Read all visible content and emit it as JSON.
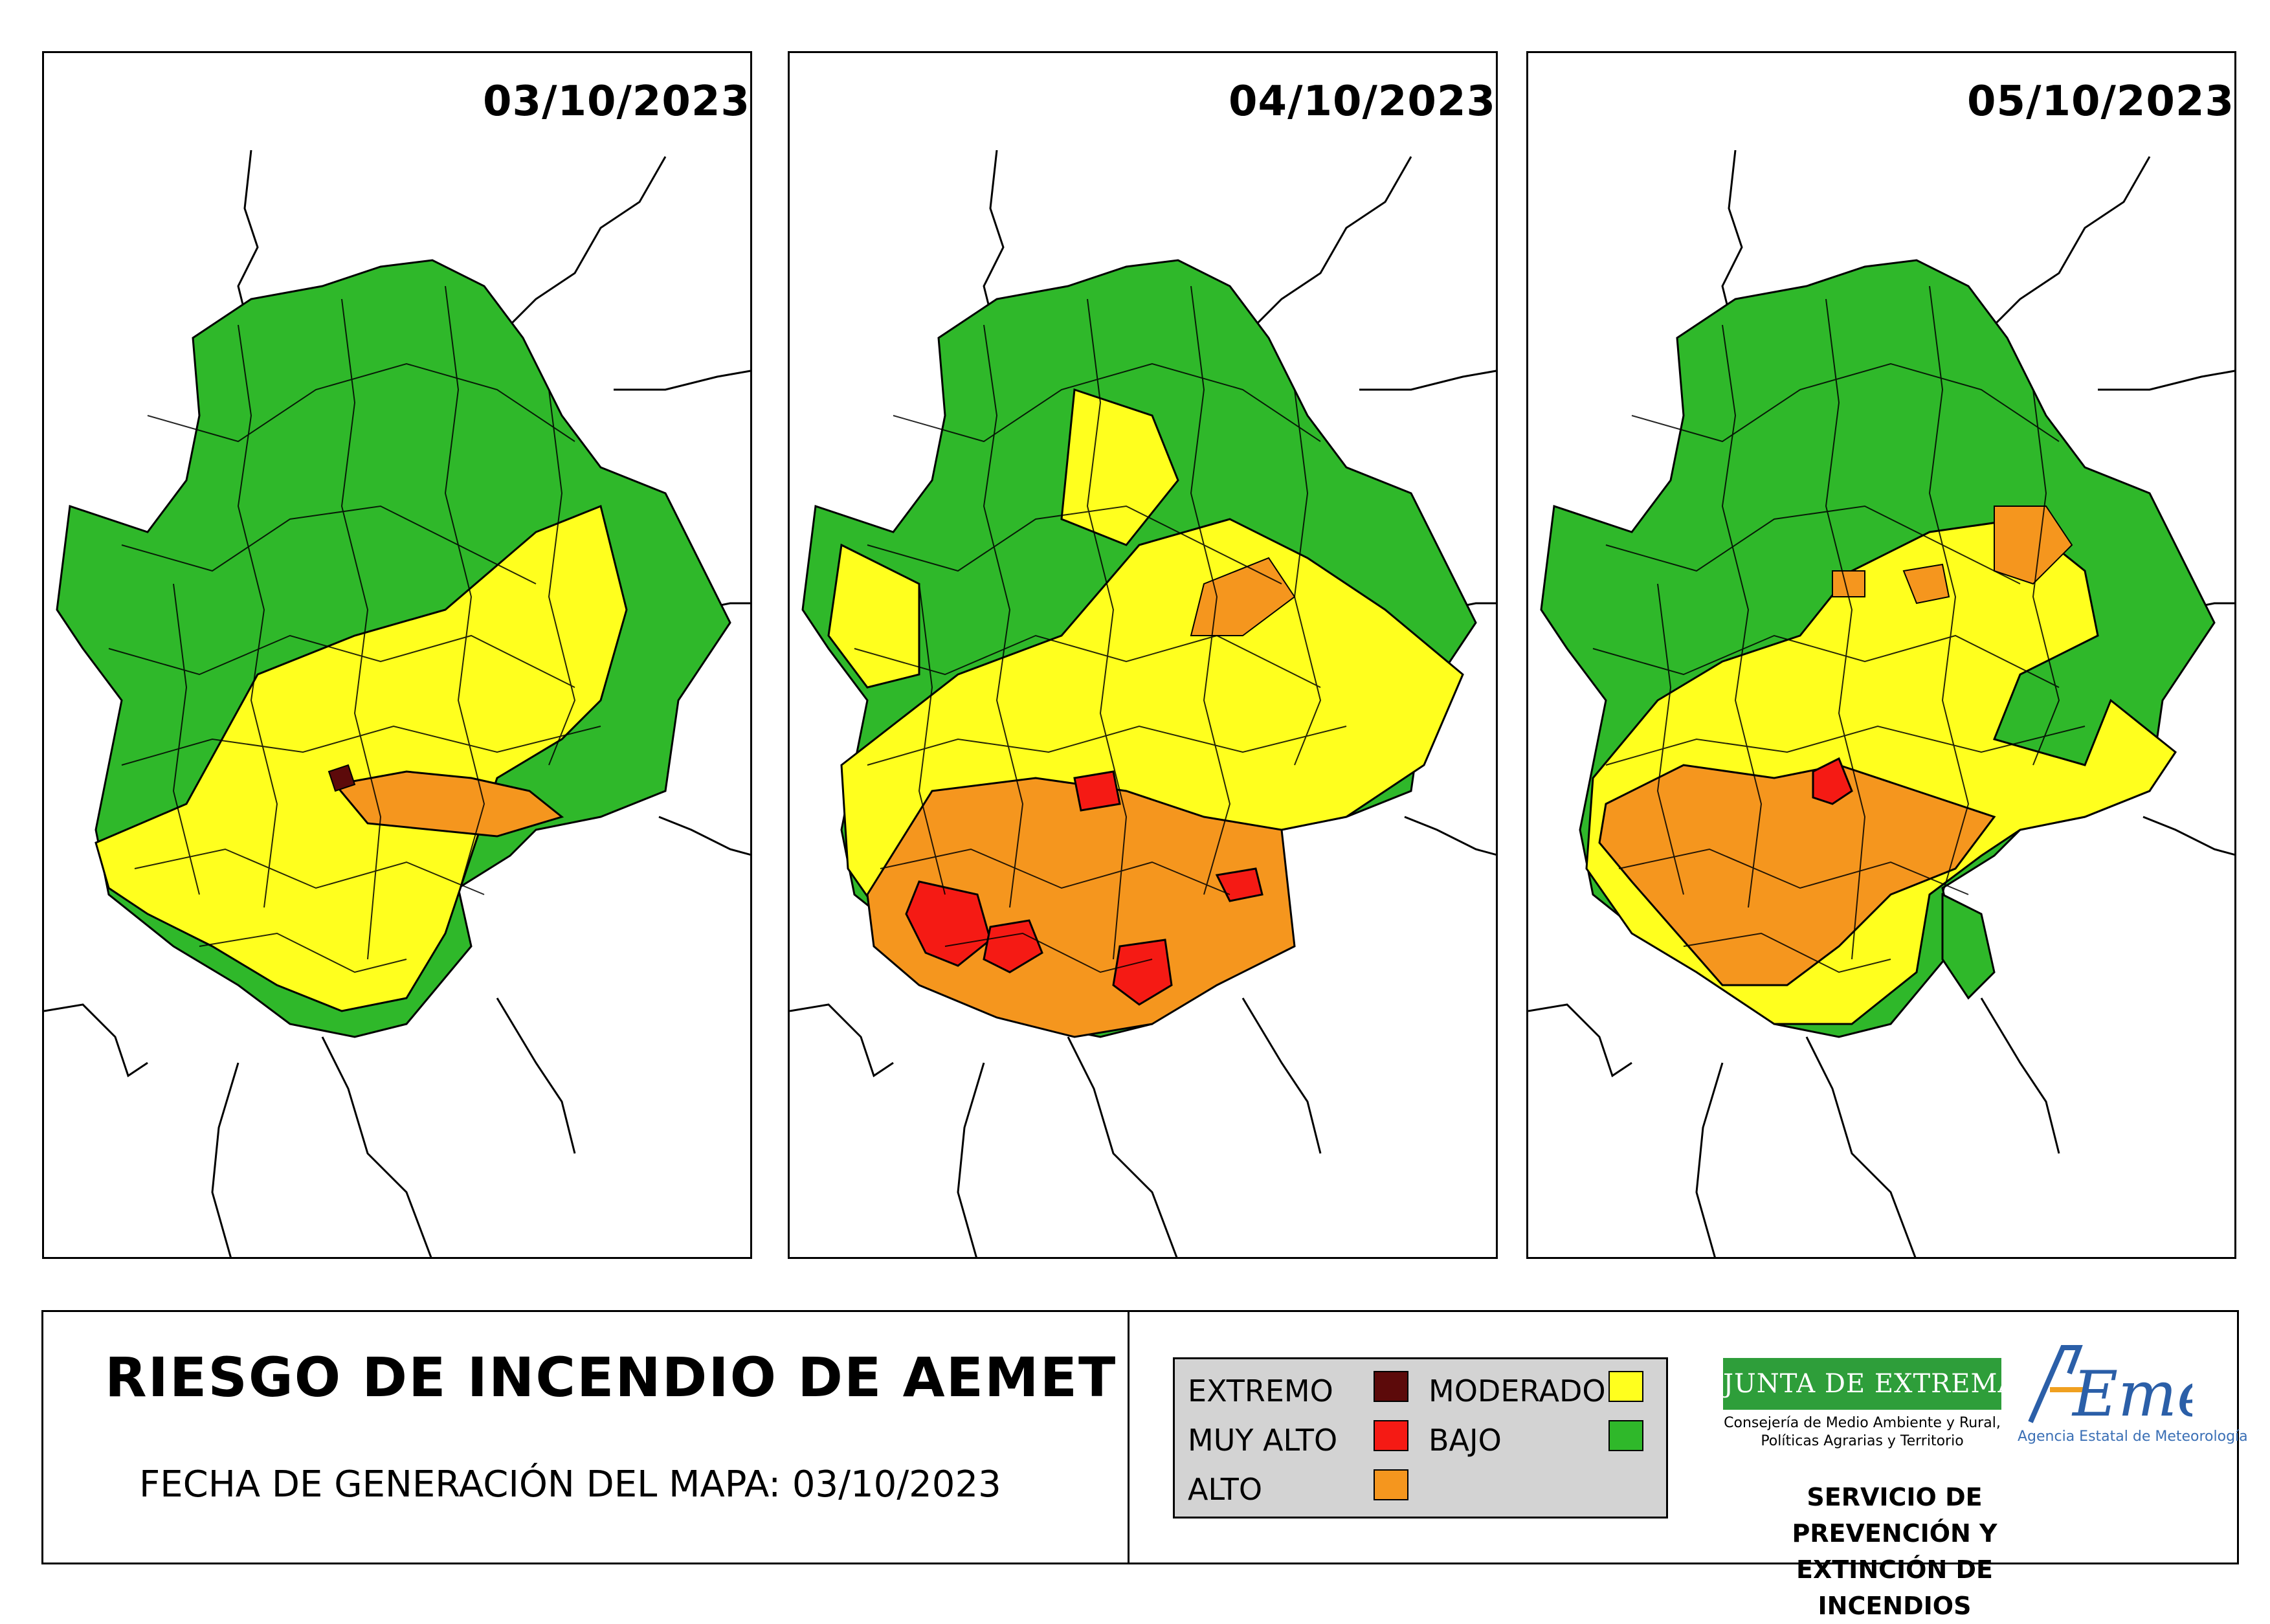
{
  "maps": [
    {
      "date": "03/10/2023"
    },
    {
      "date": "04/10/2023"
    },
    {
      "date": "05/10/2023"
    }
  ],
  "footer": {
    "title": "RIESGO DE INCENDIO DE AEMET",
    "generation_date": "FECHA DE GENERACIÓN DEL MAPA: 03/10/2023"
  },
  "legend": {
    "items": [
      {
        "label": "EXTREMO",
        "color": "#5c0a0a"
      },
      {
        "label": "MUY ALTO",
        "color": "#f51a14"
      },
      {
        "label": "ALTO",
        "color": "#f5961e"
      },
      {
        "label": "MODERADO",
        "color": "#ffff1e"
      },
      {
        "label": "BAJO",
        "color": "#2fb82a"
      }
    ]
  },
  "logos": {
    "junta": "JUNTA DE EXTREMADURA",
    "junta_sub": "Consejería de Medio Ambiente y Rural, Políticas Agrarias y Territorio",
    "aemet": "AEMet",
    "aemet_sub": "Agencia Estatal de Meteorología"
  },
  "service": "SERVICIO DE PREVENCIÓN Y EXTINCIÓN DE INCENDIOS"
}
